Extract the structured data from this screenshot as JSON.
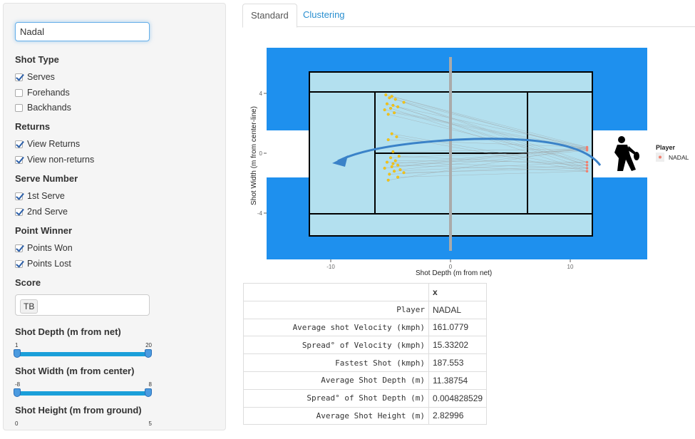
{
  "sidebar": {
    "player_value": "Nadal",
    "shot_type": {
      "label": "Shot Type",
      "options": [
        {
          "label": "Serves",
          "checked": true
        },
        {
          "label": "Forehands",
          "checked": false
        },
        {
          "label": "Backhands",
          "checked": false
        }
      ]
    },
    "returns": {
      "label": "Returns",
      "options": [
        {
          "label": "View Returns",
          "checked": true
        },
        {
          "label": "View non-returns",
          "checked": true
        }
      ]
    },
    "serve_number": {
      "label": "Serve Number",
      "options": [
        {
          "label": "1st Serve",
          "checked": true
        },
        {
          "label": "2nd Serve",
          "checked": true
        }
      ]
    },
    "point_winner": {
      "label": "Point Winner",
      "options": [
        {
          "label": "Points Won",
          "checked": true
        },
        {
          "label": "Points Lost",
          "checked": true
        }
      ]
    },
    "score": {
      "label": "Score",
      "tag": "TB"
    },
    "shot_depth": {
      "label": "Shot Depth (m from net)",
      "min": "1",
      "max": "20"
    },
    "shot_width": {
      "label": "Shot Width (m from center)",
      "min": "-8",
      "max": "8"
    },
    "shot_height": {
      "label": "Shot Height (m from ground)",
      "min": "0",
      "max": "5"
    }
  },
  "tabs": [
    "Standard",
    "Clustering"
  ],
  "chart_data": {
    "type": "scatter",
    "xlabel": "Shot Depth (m from net)",
    "ylabel": "Shot Width (m from center-line)",
    "x_ticks": [
      "-10",
      "0",
      "10"
    ],
    "y_ticks": [
      "4",
      "0",
      "-4"
    ],
    "legend": {
      "title": "Player",
      "entries": [
        "NADAL"
      ]
    },
    "colors": {
      "outer": "#1e90ee",
      "court": "#b3e0ef",
      "shots": "#f5c518",
      "origin": "#f08070",
      "net": "#aaaaaa"
    },
    "bounce_points": [
      {
        "x": -5.4,
        "y": 3.9
      },
      {
        "x": -5.1,
        "y": 3.7
      },
      {
        "x": -4.9,
        "y": 3.8
      },
      {
        "x": -4.6,
        "y": 3.6
      },
      {
        "x": -5.3,
        "y": 3.3
      },
      {
        "x": -4.8,
        "y": 3.2
      },
      {
        "x": -5.0,
        "y": 3.0
      },
      {
        "x": -4.4,
        "y": 3.1
      },
      {
        "x": -5.5,
        "y": 2.9
      },
      {
        "x": -4.7,
        "y": 2.7
      },
      {
        "x": -5.2,
        "y": 2.6
      },
      {
        "x": -3.9,
        "y": 3.4
      },
      {
        "x": -4.9,
        "y": 1.3
      },
      {
        "x": -4.5,
        "y": 1.1
      },
      {
        "x": -5.2,
        "y": 0.9
      },
      {
        "x": -4.8,
        "y": 0.1
      },
      {
        "x": -5.0,
        "y": -0.3
      },
      {
        "x": -4.6,
        "y": -0.5
      },
      {
        "x": -4.3,
        "y": -0.2
      },
      {
        "x": -5.3,
        "y": -0.6
      },
      {
        "x": -4.4,
        "y": -0.8
      },
      {
        "x": -4.9,
        "y": -0.9
      },
      {
        "x": -5.5,
        "y": -1.0
      },
      {
        "x": -4.2,
        "y": -1.1
      },
      {
        "x": -4.7,
        "y": -1.2
      },
      {
        "x": -5.1,
        "y": -1.4
      },
      {
        "x": -3.9,
        "y": -1.3
      },
      {
        "x": -4.4,
        "y": -1.6
      },
      {
        "x": -5.2,
        "y": -1.8
      },
      {
        "x": -4.8,
        "y": -0.7
      }
    ],
    "serve_origins": [
      {
        "x": 11.4,
        "y": 0.4
      },
      {
        "x": 11.4,
        "y": 0.3
      },
      {
        "x": 11.4,
        "y": 0.2
      },
      {
        "x": 11.4,
        "y": -0.6
      },
      {
        "x": 11.4,
        "y": -0.8
      },
      {
        "x": 11.4,
        "y": -1.0
      },
      {
        "x": 11.4,
        "y": -1.2
      }
    ]
  },
  "stats": {
    "header": "x",
    "rows": [
      {
        "key": "Player",
        "value": "NADAL"
      },
      {
        "key": "Average shot Velocity (kmph)",
        "value": "161.0779"
      },
      {
        "key": "Spread° of Velocity (kmph)",
        "value": "15.33202"
      },
      {
        "key": "Fastest Shot (kmph)",
        "value": "187.553"
      },
      {
        "key": "Average Shot Depth (m)",
        "value": "11.38754"
      },
      {
        "key": "Spread° of Shot Depth (m)",
        "value": "0.004828529"
      },
      {
        "key": "Average Shot Height (m)",
        "value": "2.82996"
      }
    ]
  }
}
